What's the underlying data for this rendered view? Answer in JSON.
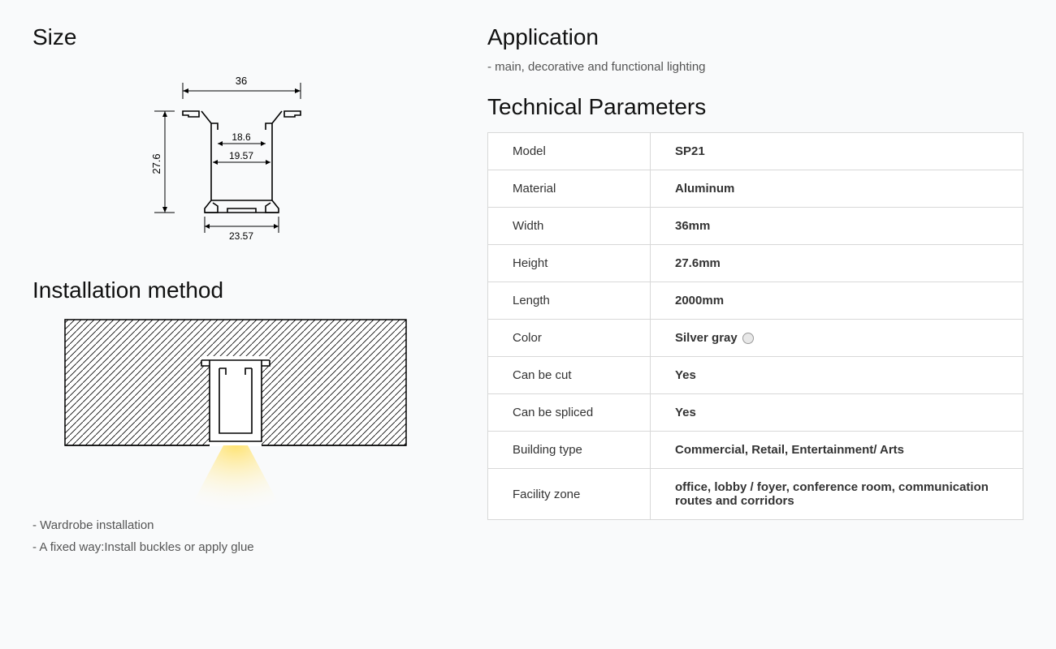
{
  "headings": {
    "size": "Size",
    "installation": "Installation method",
    "application": "Application",
    "technical": "Technical Parameters"
  },
  "size_diagram": {
    "width_top": "36",
    "height_left": "27.6",
    "inner_width_top": "18.6",
    "inner_width_mid": "19.57",
    "base_width": "23.57",
    "stroke_color": "#000000",
    "stroke_width": 1.2,
    "font_size": 11,
    "text_color": "#000000"
  },
  "installation_diagram": {
    "hatch_color": "#000000",
    "hatch_bg": "#ffffff",
    "profile_stroke": "#000000",
    "light_color": "#ffe373",
    "light_gradient_end": "#fff8d6"
  },
  "installation_notes": [
    "Wardrobe installation",
    "A fixed way:Install buckles or apply glue"
  ],
  "application_note": "main, decorative and functional lighting",
  "technical_parameters": {
    "rows": [
      {
        "label": "Model",
        "value": "SP21"
      },
      {
        "label": "Material",
        "value": "Aluminum"
      },
      {
        "label": "Width",
        "value": "36mm"
      },
      {
        "label": "Height",
        "value": "27.6mm"
      },
      {
        "label": "Length",
        "value": "2000mm"
      },
      {
        "label": "Color",
        "value": "Silver gray",
        "swatch": "#e8e8e8"
      },
      {
        "label": "Can be cut",
        "value": "Yes"
      },
      {
        "label": "Can be spliced",
        "value": "Yes"
      },
      {
        "label": "Building type",
        "value": "Commercial, Retail, Entertainment/ Arts"
      },
      {
        "label": "Facility zone",
        "value": "office, lobby / foyer, conference room, communication routes and corridors"
      }
    ],
    "border_color": "#d8d8d8",
    "label_fontsize": 15,
    "value_fontsize": 15,
    "value_weight": 700
  },
  "page": {
    "background": "#f9fafb",
    "heading_fontsize": 28,
    "note_color": "#555555"
  }
}
